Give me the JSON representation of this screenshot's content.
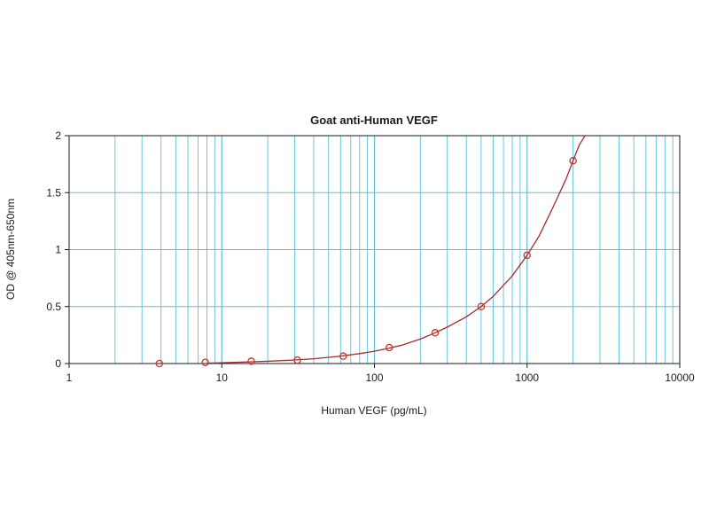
{
  "chart_data": {
    "type": "scatter",
    "title": "Goat anti-Human VEGF",
    "xlabel": "Human VEGF (pg/mL)",
    "ylabel": "OD @ 405nm-650nm",
    "x_scale": "log",
    "xlim": [
      1,
      10000
    ],
    "ylim": [
      0,
      2
    ],
    "x_ticks": [
      1,
      10,
      100,
      1000,
      10000
    ],
    "x_tick_labels": [
      "1",
      "10",
      "100",
      "1000",
      "10000"
    ],
    "y_ticks": [
      0,
      0.5,
      1,
      1.5,
      2
    ],
    "y_tick_labels": [
      "0",
      "0.5",
      "1",
      "1.5",
      "2"
    ],
    "grid": true,
    "colors": {
      "grid": "#5cc0d6",
      "curve": "#a52a2a",
      "marker": "#c0392b"
    },
    "series": [
      {
        "points": [
          {
            "x": 3.9,
            "y": 0.0
          },
          {
            "x": 7.8,
            "y": 0.01
          },
          {
            "x": 15.6,
            "y": 0.02
          },
          {
            "x": 31.25,
            "y": 0.03
          },
          {
            "x": 62.5,
            "y": 0.065
          },
          {
            "x": 125,
            "y": 0.14
          },
          {
            "x": 250,
            "y": 0.27
          },
          {
            "x": 500,
            "y": 0.5
          },
          {
            "x": 1000,
            "y": 0.95
          },
          {
            "x": 2000,
            "y": 1.78
          }
        ]
      }
    ],
    "fit_curve": {
      "x": [
        8,
        10,
        15,
        20,
        30,
        40,
        60,
        80,
        100,
        125,
        150,
        200,
        250,
        300,
        400,
        500,
        600,
        800,
        1000,
        1200,
        1500,
        1800,
        2000,
        2200,
        2400
      ],
      "y": [
        0.004,
        0.007,
        0.014,
        0.02,
        0.031,
        0.042,
        0.065,
        0.087,
        0.108,
        0.135,
        0.16,
        0.215,
        0.27,
        0.32,
        0.41,
        0.5,
        0.59,
        0.77,
        0.95,
        1.12,
        1.39,
        1.62,
        1.78,
        1.92,
        2.0
      ]
    }
  }
}
